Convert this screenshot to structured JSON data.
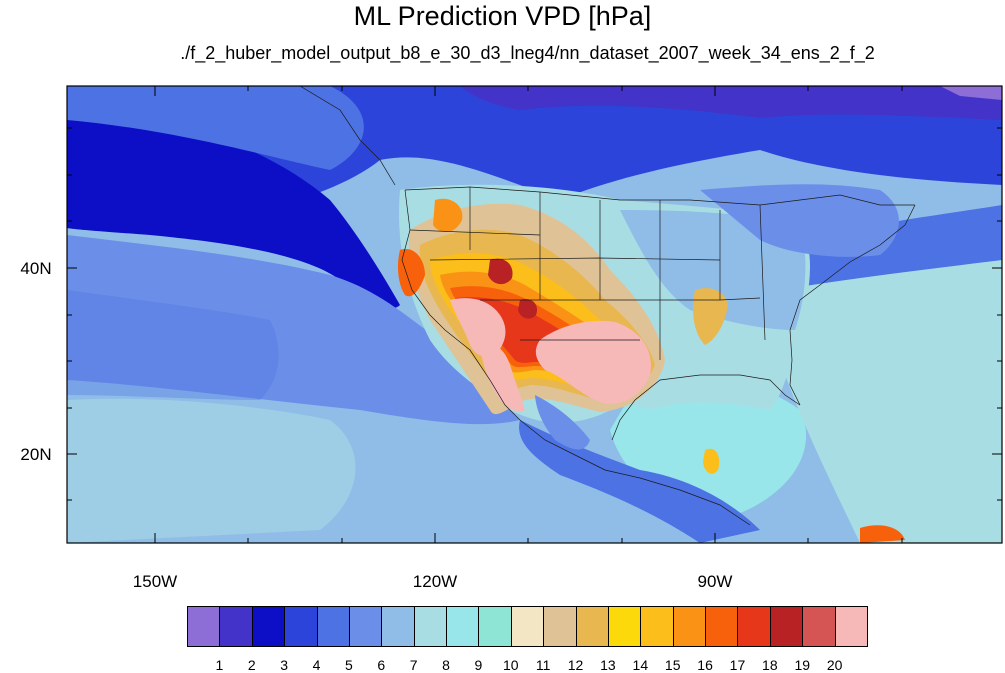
{
  "title": "ML Prediction VPD [hPa]",
  "subtitle": "./f_2_huber_model_output_b8_e_30_d3_lneg4/nn_dataset_2007_week_34_ens_2_f_2",
  "axes": {
    "lat_labels": [
      "40N",
      "20N"
    ],
    "lon_labels": [
      "150W",
      "120W",
      "90W"
    ]
  },
  "colorbar": {
    "labels": [
      "1",
      "2",
      "3",
      "4",
      "5",
      "6",
      "7",
      "8",
      "9",
      "10",
      "11",
      "12",
      "13",
      "14",
      "15",
      "16",
      "17",
      "18",
      "19",
      "20"
    ],
    "colors": [
      "#8c6ed6",
      "#4333c9",
      "#0c0fc5",
      "#2c44d9",
      "#4d72e3",
      "#6b8fe8",
      "#8fbde8",
      "#a9dde4",
      "#98e6ea",
      "#8ee5d6",
      "#f3e6c5",
      "#dfc396",
      "#e8b74f",
      "#fcd90b",
      "#fbbe1b",
      "#fa9315",
      "#f8610c",
      "#e6371b",
      "#b82224",
      "#d55555",
      "#f7b8b8"
    ]
  }
}
